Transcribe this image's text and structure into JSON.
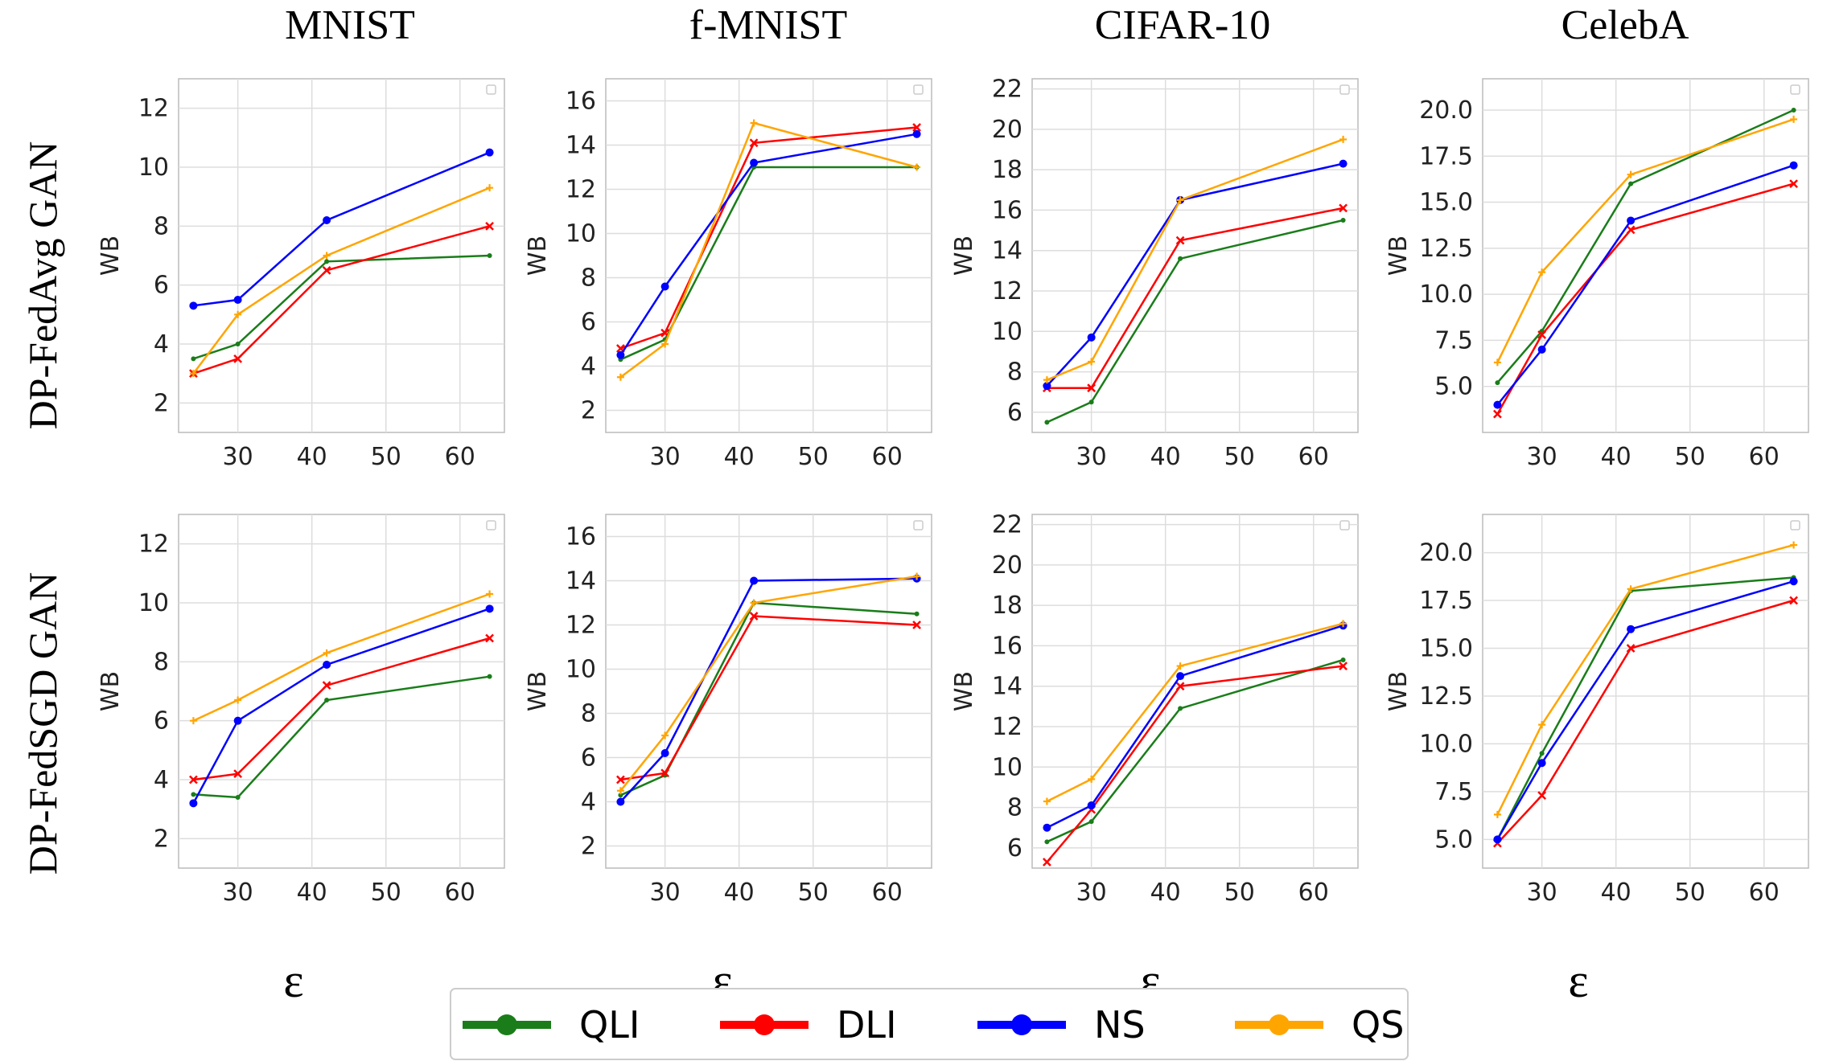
{
  "chart_data": {
    "type": "line",
    "x_symbol": "ε",
    "ylabel": "WB",
    "legend": {
      "placement": "bottom-center",
      "entries": [
        {
          "name": "QLI",
          "color": "#1a7d1a"
        },
        {
          "name": "DLI",
          "color": "#ff0000"
        },
        {
          "name": "NS",
          "color": "#0000ff"
        },
        {
          "name": "QS",
          "color": "#ffa500"
        }
      ]
    },
    "columns": [
      "MNIST",
      "f-MNIST",
      "CIFAR-10",
      "CelebA"
    ],
    "rows": [
      "DP-FedAvg GAN",
      "DP-FedSGD GAN"
    ],
    "x": [
      24,
      30,
      42,
      64
    ],
    "xlim": [
      22,
      66
    ],
    "xticks": [
      30,
      40,
      50,
      60
    ],
    "grid": true,
    "panels": [
      {
        "row": 0,
        "col": 0,
        "ylim": [
          1,
          13
        ],
        "yticks": [
          2,
          4,
          6,
          8,
          10,
          12
        ],
        "ytick_labels": [
          "2",
          "4",
          "6",
          "8",
          "10",
          "12"
        ],
        "series": [
          {
            "name": "QLI",
            "values": [
              3.5,
              4.0,
              6.8,
              7.0
            ]
          },
          {
            "name": "DLI",
            "values": [
              3.0,
              3.5,
              6.5,
              8.0
            ]
          },
          {
            "name": "NS",
            "values": [
              5.3,
              5.5,
              8.2,
              10.5
            ]
          },
          {
            "name": "QS",
            "values": [
              3.0,
              5.0,
              7.0,
              9.3
            ]
          }
        ]
      },
      {
        "row": 0,
        "col": 1,
        "ylim": [
          1,
          17
        ],
        "yticks": [
          2,
          4,
          6,
          8,
          10,
          12,
          14,
          16
        ],
        "ytick_labels": [
          "2",
          "4",
          "6",
          "8",
          "10",
          "12",
          "14",
          "16"
        ],
        "series": [
          {
            "name": "QLI",
            "values": [
              4.3,
              5.2,
              13.0,
              13.0
            ]
          },
          {
            "name": "DLI",
            "values": [
              4.8,
              5.5,
              14.1,
              14.8
            ]
          },
          {
            "name": "NS",
            "values": [
              4.5,
              7.6,
              13.2,
              14.5
            ]
          },
          {
            "name": "QS",
            "values": [
              3.5,
              5.0,
              15.0,
              13.0
            ]
          }
        ]
      },
      {
        "row": 0,
        "col": 2,
        "ylim": [
          5,
          22.5
        ],
        "yticks": [
          6,
          8,
          10,
          12,
          14,
          16,
          18,
          20,
          22
        ],
        "ytick_labels": [
          "6",
          "8",
          "10",
          "12",
          "14",
          "16",
          "18",
          "20",
          "22"
        ],
        "series": [
          {
            "name": "QLI",
            "values": [
              5.5,
              6.5,
              13.6,
              15.5
            ]
          },
          {
            "name": "DLI",
            "values": [
              7.2,
              7.2,
              14.5,
              16.1
            ]
          },
          {
            "name": "NS",
            "values": [
              7.3,
              9.7,
              16.5,
              18.3
            ]
          },
          {
            "name": "QS",
            "values": [
              7.6,
              8.5,
              16.5,
              19.5
            ]
          }
        ]
      },
      {
        "row": 0,
        "col": 3,
        "ylim": [
          2.5,
          21.7
        ],
        "yticks": [
          5.0,
          7.5,
          10.0,
          12.5,
          15.0,
          17.5,
          20.0
        ],
        "ytick_labels": [
          "5.0",
          "7.5",
          "10.0",
          "12.5",
          "15.0",
          "17.5",
          "20.0"
        ],
        "series": [
          {
            "name": "QLI",
            "values": [
              5.2,
              8.0,
              16.0,
              20.0
            ]
          },
          {
            "name": "DLI",
            "values": [
              3.5,
              7.8,
              13.5,
              16.0
            ]
          },
          {
            "name": "NS",
            "values": [
              4.0,
              7.0,
              14.0,
              17.0
            ]
          },
          {
            "name": "QS",
            "values": [
              6.3,
              11.2,
              16.5,
              19.5
            ]
          }
        ]
      },
      {
        "row": 1,
        "col": 0,
        "ylim": [
          1,
          13
        ],
        "yticks": [
          2,
          4,
          6,
          8,
          10,
          12
        ],
        "ytick_labels": [
          "2",
          "4",
          "6",
          "8",
          "10",
          "12"
        ],
        "series": [
          {
            "name": "QLI",
            "values": [
              3.5,
              3.4,
              6.7,
              7.5
            ]
          },
          {
            "name": "DLI",
            "values": [
              4.0,
              4.2,
              7.2,
              8.8
            ]
          },
          {
            "name": "NS",
            "values": [
              3.2,
              6.0,
              7.9,
              9.8
            ]
          },
          {
            "name": "QS",
            "values": [
              6.0,
              6.7,
              8.3,
              10.3
            ]
          }
        ]
      },
      {
        "row": 1,
        "col": 1,
        "ylim": [
          1,
          17
        ],
        "yticks": [
          2,
          4,
          6,
          8,
          10,
          12,
          14,
          16
        ],
        "ytick_labels": [
          "2",
          "4",
          "6",
          "8",
          "10",
          "12",
          "14",
          "16"
        ],
        "series": [
          {
            "name": "QLI",
            "values": [
              4.3,
              5.2,
              13.0,
              12.5
            ]
          },
          {
            "name": "DLI",
            "values": [
              5.0,
              5.3,
              12.4,
              12.0
            ]
          },
          {
            "name": "NS",
            "values": [
              4.0,
              6.2,
              14.0,
              14.1
            ]
          },
          {
            "name": "QS",
            "values": [
              4.5,
              7.0,
              13.0,
              14.2
            ]
          }
        ]
      },
      {
        "row": 1,
        "col": 2,
        "ylim": [
          5,
          22.5
        ],
        "yticks": [
          6,
          8,
          10,
          12,
          14,
          16,
          18,
          20,
          22
        ],
        "ytick_labels": [
          "6",
          "8",
          "10",
          "12",
          "14",
          "16",
          "18",
          "20",
          "22"
        ],
        "series": [
          {
            "name": "QLI",
            "values": [
              6.3,
              7.3,
              12.9,
              15.3
            ]
          },
          {
            "name": "DLI",
            "values": [
              5.3,
              7.9,
              14.0,
              15.0
            ]
          },
          {
            "name": "NS",
            "values": [
              7.0,
              8.1,
              14.5,
              17.0
            ]
          },
          {
            "name": "QS",
            "values": [
              8.3,
              9.4,
              15.0,
              17.1
            ]
          }
        ]
      },
      {
        "row": 1,
        "col": 3,
        "ylim": [
          3.5,
          22.0
        ],
        "yticks": [
          5.0,
          7.5,
          10.0,
          12.5,
          15.0,
          17.5,
          20.0
        ],
        "ytick_labels": [
          "5.0",
          "7.5",
          "10.0",
          "12.5",
          "15.0",
          "17.5",
          "20.0"
        ],
        "series": [
          {
            "name": "QLI",
            "values": [
              5.0,
              9.5,
              18.0,
              18.7
            ]
          },
          {
            "name": "DLI",
            "values": [
              4.8,
              7.3,
              15.0,
              17.5
            ]
          },
          {
            "name": "NS",
            "values": [
              5.0,
              9.0,
              16.0,
              18.5
            ]
          },
          {
            "name": "QS",
            "values": [
              6.3,
              11.0,
              18.1,
              20.4
            ]
          }
        ]
      }
    ]
  }
}
